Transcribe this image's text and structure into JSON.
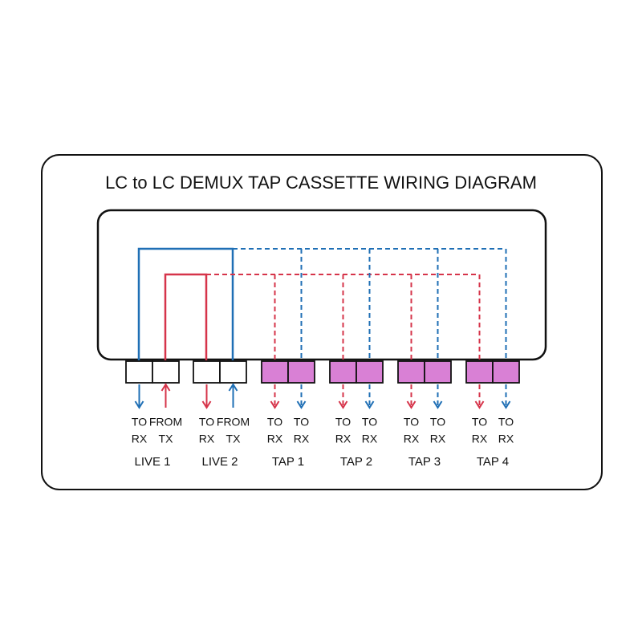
{
  "title": "LC to LC DEMUX TAP CASSETTE WIRING DIAGRAM",
  "groups": [
    {
      "label": "LIVE 1",
      "ports": [
        {
          "line1": "TO",
          "line2": "RX"
        },
        {
          "line1": "FROM",
          "line2": "TX"
        }
      ]
    },
    {
      "label": "LIVE 2",
      "ports": [
        {
          "line1": "TO",
          "line2": "RX"
        },
        {
          "line1": "FROM",
          "line2": "TX"
        }
      ]
    },
    {
      "label": "TAP 1",
      "ports": [
        {
          "line1": "TO",
          "line2": "RX"
        },
        {
          "line1": "TO",
          "line2": "RX"
        }
      ]
    },
    {
      "label": "TAP 2",
      "ports": [
        {
          "line1": "TO",
          "line2": "RX"
        },
        {
          "line1": "TO",
          "line2": "RX"
        }
      ]
    },
    {
      "label": "TAP 3",
      "ports": [
        {
          "line1": "TO",
          "line2": "RX"
        },
        {
          "line1": "TO",
          "line2": "RX"
        }
      ]
    },
    {
      "label": "TAP 4",
      "ports": [
        {
          "line1": "TO",
          "line2": "RX"
        },
        {
          "line1": "TO",
          "line2": "RX"
        }
      ]
    }
  ]
}
